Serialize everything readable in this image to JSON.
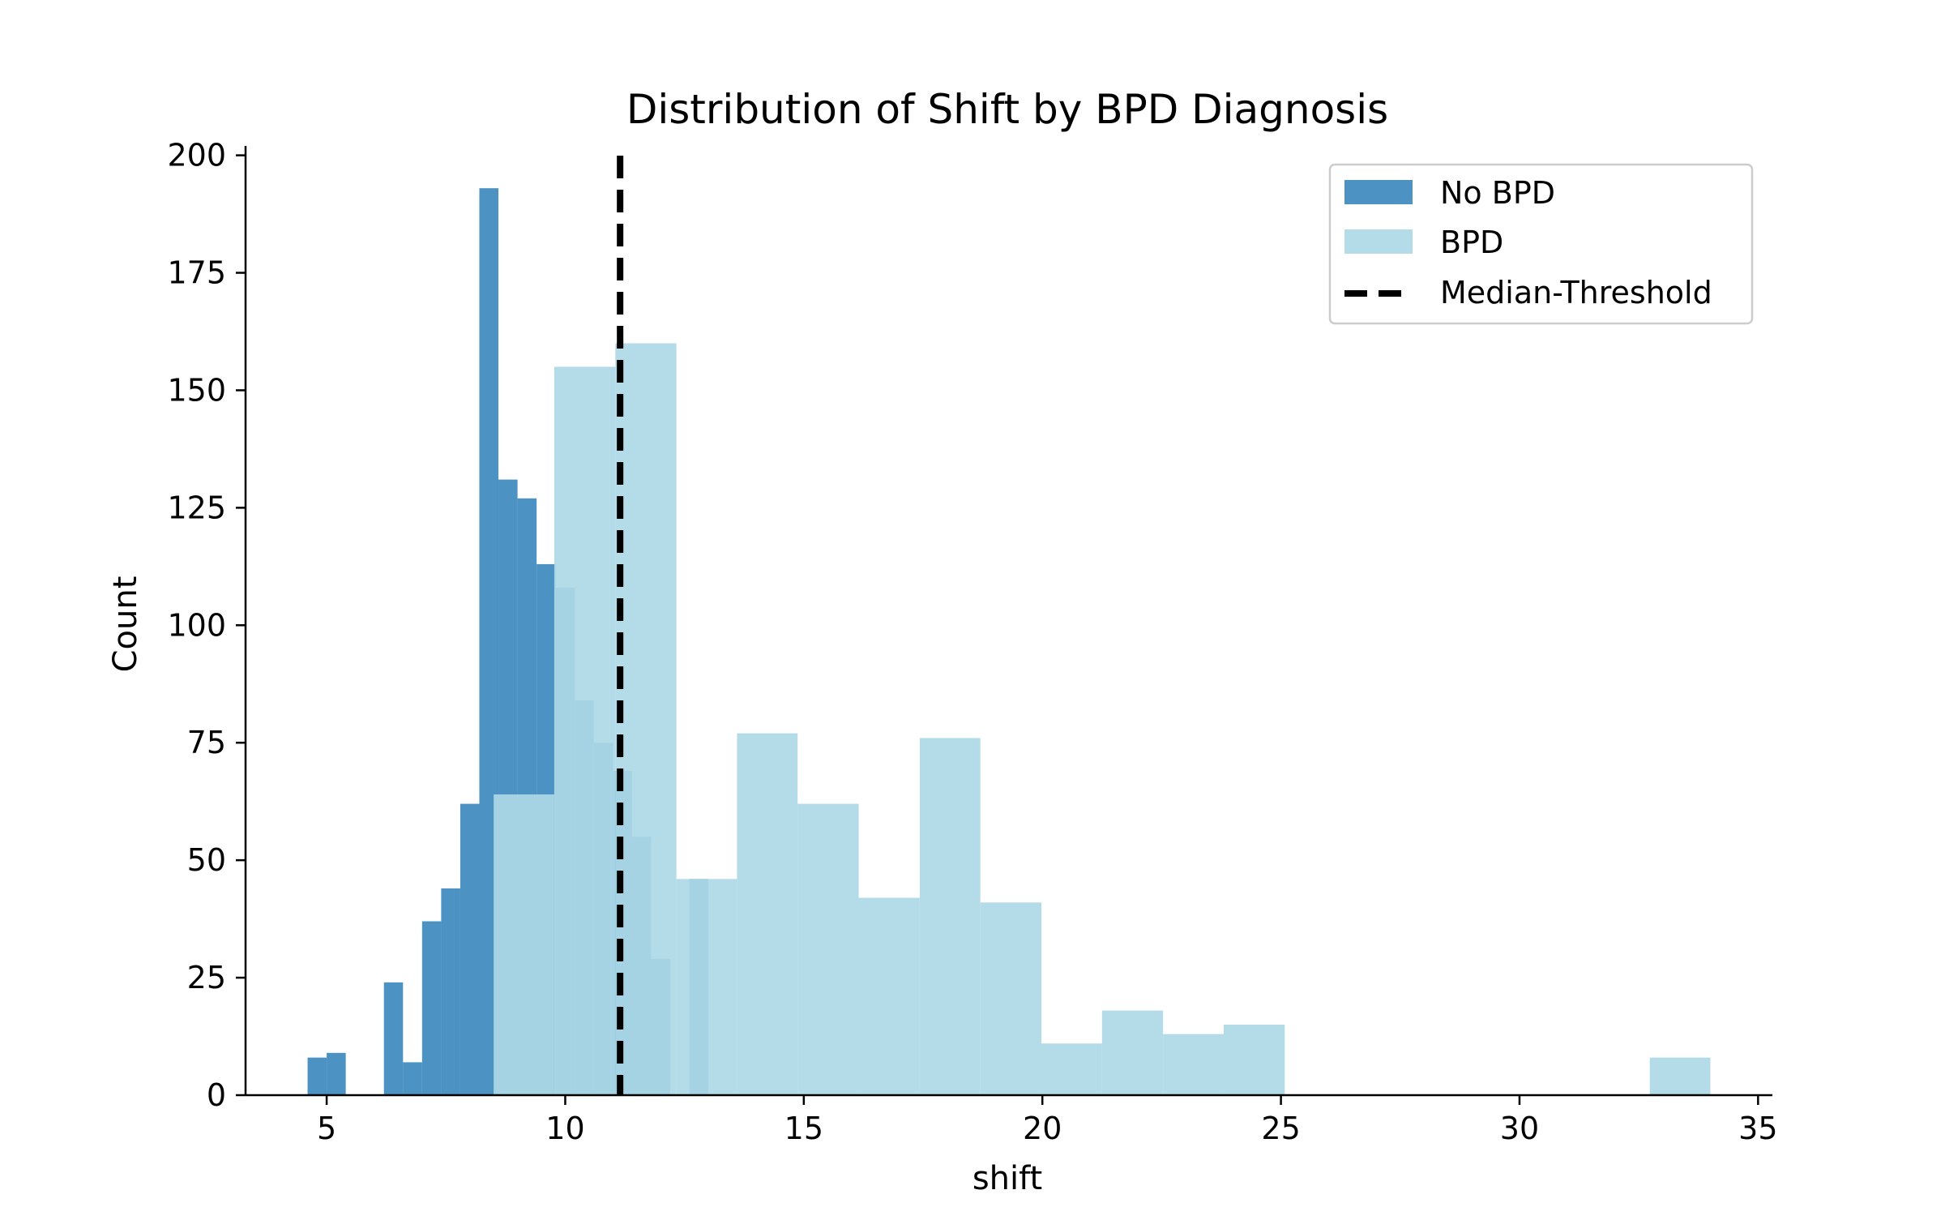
{
  "chart_data": {
    "type": "histogram",
    "title": "Distribution of Shift by BPD Diagnosis",
    "xlabel": "shift",
    "ylabel": "Count",
    "xlim": [
      3.3,
      35.3
    ],
    "ylim": [
      0,
      202
    ],
    "xticks": [
      5,
      10,
      15,
      20,
      25,
      30,
      35
    ],
    "yticks": [
      0,
      25,
      50,
      75,
      100,
      125,
      150,
      175,
      200
    ],
    "grid": false,
    "legend_position": "top-right",
    "series": [
      {
        "name": "No BPD",
        "color": "#1f77b4",
        "opacity": 0.8,
        "bins": [
          [
            4.6,
            5.0,
            8
          ],
          [
            5.0,
            5.4,
            9
          ],
          [
            5.4,
            5.8,
            0
          ],
          [
            5.8,
            6.2,
            0
          ],
          [
            6.2,
            6.6,
            24
          ],
          [
            6.6,
            7.0,
            7
          ],
          [
            7.0,
            7.4,
            37
          ],
          [
            7.4,
            7.8,
            44
          ],
          [
            7.8,
            8.2,
            62
          ],
          [
            8.2,
            8.6,
            193
          ],
          [
            8.6,
            9.0,
            131
          ],
          [
            9.0,
            9.4,
            127
          ],
          [
            9.4,
            9.8,
            113
          ],
          [
            9.8,
            10.2,
            108
          ],
          [
            10.2,
            10.6,
            84
          ],
          [
            10.6,
            11.0,
            75
          ],
          [
            11.0,
            11.4,
            69
          ],
          [
            11.4,
            11.8,
            55
          ],
          [
            11.8,
            12.2,
            29
          ],
          [
            12.2,
            12.6,
            0
          ],
          [
            12.6,
            13.0,
            46
          ]
        ]
      },
      {
        "name": "BPD",
        "color": "#add8e6",
        "opacity": 0.93,
        "bins": [
          [
            8.5,
            9.77,
            64
          ],
          [
            9.77,
            11.05,
            155
          ],
          [
            11.05,
            12.33,
            160
          ],
          [
            12.33,
            13.6,
            46
          ],
          [
            13.6,
            14.87,
            77
          ],
          [
            14.87,
            16.15,
            62
          ],
          [
            16.15,
            17.43,
            42
          ],
          [
            17.43,
            18.7,
            76
          ],
          [
            18.7,
            19.98,
            41
          ],
          [
            19.98,
            21.25,
            11
          ],
          [
            21.25,
            22.53,
            18
          ],
          [
            22.53,
            23.8,
            13
          ],
          [
            23.8,
            25.08,
            15
          ],
          [
            25.08,
            26.35,
            0
          ],
          [
            26.35,
            27.63,
            0
          ],
          [
            27.63,
            28.9,
            0
          ],
          [
            28.9,
            30.18,
            0
          ],
          [
            30.18,
            31.45,
            0
          ],
          [
            31.45,
            32.73,
            0
          ],
          [
            32.73,
            34.0,
            8
          ]
        ]
      }
    ],
    "threshold": {
      "name": "Median-Threshold",
      "x": 11.15,
      "color": "#000000",
      "style": "dashed"
    }
  }
}
